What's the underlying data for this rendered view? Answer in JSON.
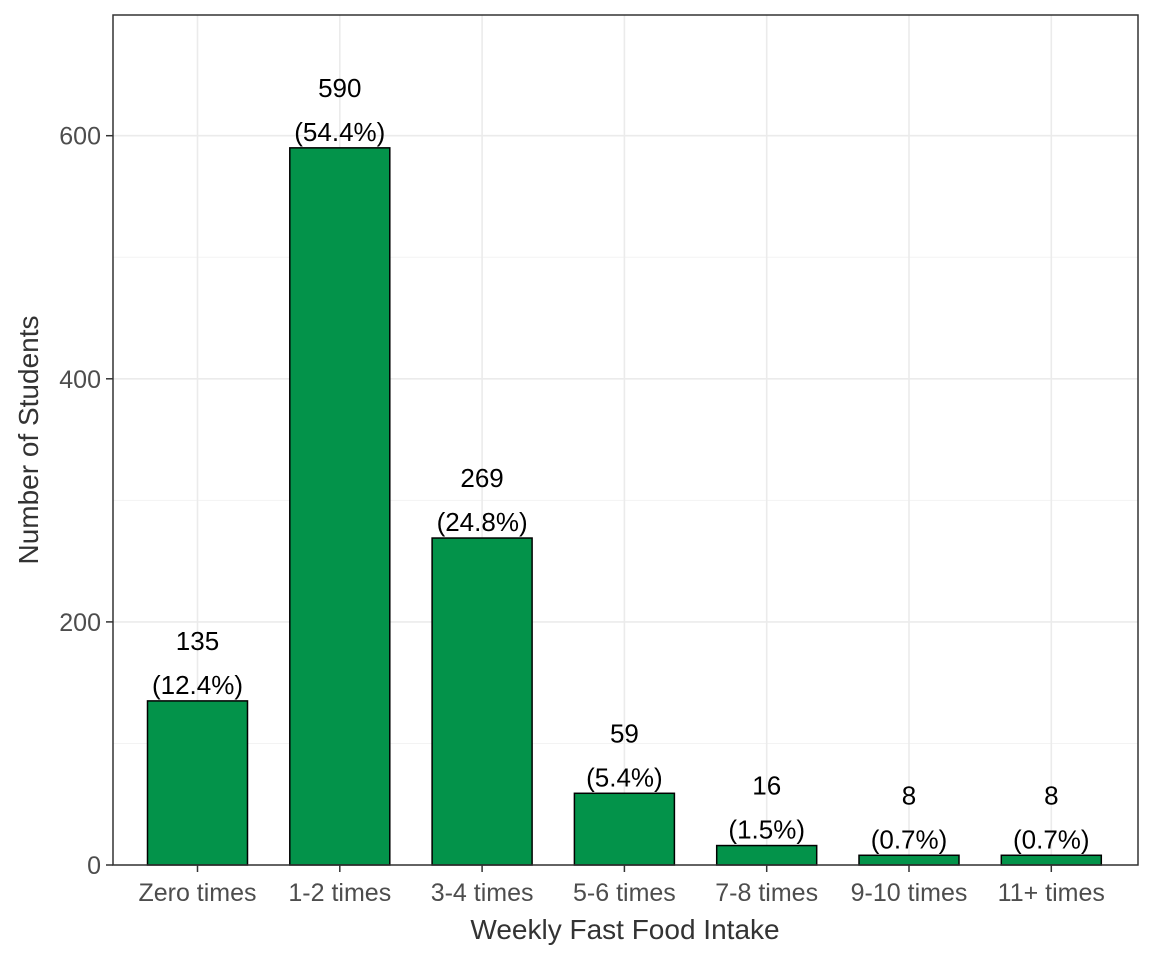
{
  "chart_data": {
    "type": "bar",
    "title": "",
    "xlabel": "Weekly Fast Food Intake",
    "ylabel": "Number of Students",
    "categories": [
      "Zero times",
      "1-2 times",
      "3-4 times",
      "5-6 times",
      "7-8 times",
      "9-10 times",
      "11+ times"
    ],
    "values": [
      135,
      590,
      269,
      59,
      16,
      8,
      8
    ],
    "percent_labels": [
      "(12.4%)",
      "(54.4%)",
      "(24.8%)",
      "(5.4%)",
      "(1.5%)",
      "(0.7%)",
      "(0.7%)"
    ],
    "ylim": [
      0,
      700
    ],
    "yticks": [
      0,
      200,
      400,
      600
    ],
    "grid": true,
    "legend": "none",
    "bar_color": "#03934A",
    "bar_edge_color": "#000000"
  }
}
